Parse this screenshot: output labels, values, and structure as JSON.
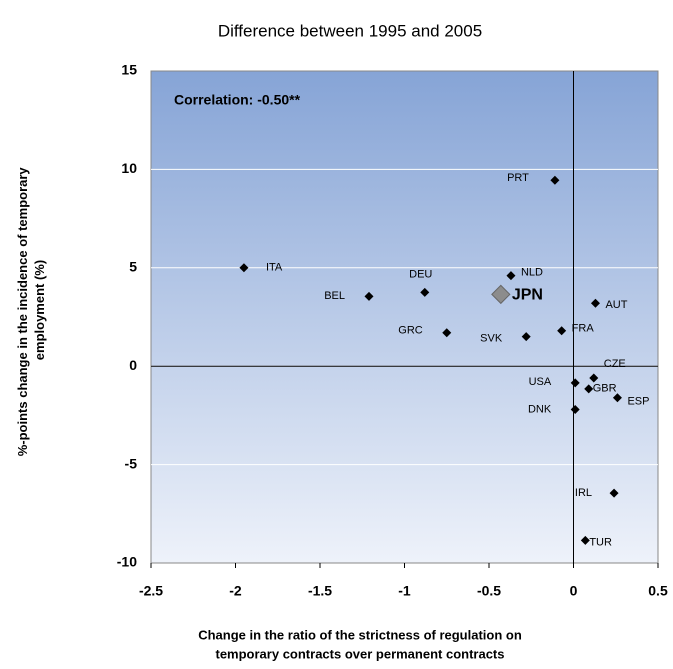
{
  "chart_data": {
    "type": "scatter",
    "title": "Difference between 1995 and 2005",
    "annotation": "Correlation: -0.50**",
    "y_label": [
      "%-points change in the incidence of temporary",
      "employment (%)"
    ],
    "x_label": [
      "Change in the ratio of the strictness of regulation on",
      "temporary contracts over permanent contracts"
    ],
    "x": [
      -1.95,
      -1.21,
      -0.88,
      -0.75,
      -0.28,
      -0.37,
      -0.43,
      -0.11,
      -0.07,
      0.13,
      0.12,
      0.01,
      0.09,
      0.26,
      0.01,
      0.24,
      0.07
    ],
    "series": [
      {
        "values": [
          5.0,
          3.55,
          3.75,
          1.7,
          1.5,
          4.6,
          3.65,
          9.45,
          1.8,
          3.2,
          -0.6,
          -0.85,
          -1.15,
          -1.6,
          -2.2,
          -6.45,
          -8.85
        ],
        "labels": [
          "ITA",
          "BEL",
          "DEU",
          "GRC",
          "SVK",
          "NLD",
          "JPN",
          "PRT",
          "FRA",
          "AUT",
          "CZE",
          "USA",
          "GBR",
          "ESP",
          "DNK",
          "IRL",
          "TUR"
        ],
        "color": "#000000",
        "highlight": 6,
        "highlight_color": "#8c8c8c"
      }
    ],
    "xlim": [
      -2.5,
      0.5
    ],
    "ylim": [
      -10,
      15
    ],
    "xticks": [
      -2.5,
      -2,
      -1.5,
      -1,
      -0.5,
      0,
      0.5
    ],
    "yticks": [
      15,
      10,
      5,
      0,
      -5,
      -10
    ],
    "grid": true
  }
}
